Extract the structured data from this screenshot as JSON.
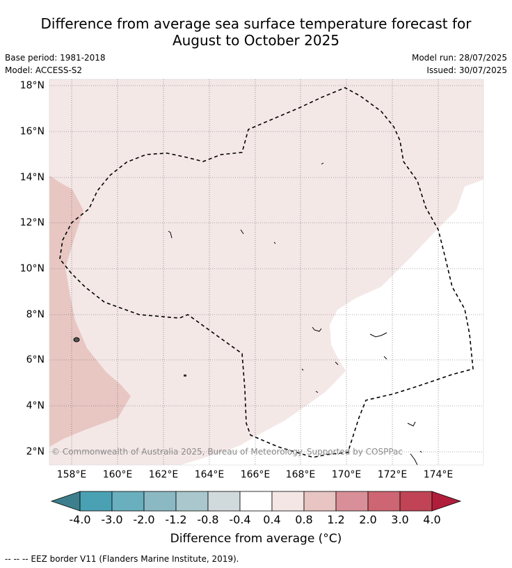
{
  "title": {
    "line1": "Difference from average sea surface temperature forecast for",
    "line2": "August to October 2025"
  },
  "meta": {
    "base_period": "Base period: 1981-2018",
    "model": "Model: ACCESS-S2",
    "model_run": "Model run: 28/07/2025",
    "issued": "Issued: 30/07/2025"
  },
  "map": {
    "lat_labels": [
      "18°N",
      "16°N",
      "14°N",
      "12°N",
      "10°N",
      "8°N",
      "6°N",
      "4°N",
      "2°N"
    ],
    "lon_labels": [
      "158°E",
      "160°E",
      "162°E",
      "164°E",
      "166°E",
      "168°E",
      "170°E",
      "172°E",
      "174°E"
    ],
    "copyright": "© Commonwealth of Australia 2025, Bureau of Meteorology. Supported by COSPPac"
  },
  "colorbar": {
    "ticks": [
      "-4.0",
      "-3.0",
      "-2.0",
      "-1.2",
      "-0.8",
      "-0.4",
      "0.4",
      "0.8",
      "1.2",
      "2.0",
      "3.0",
      "4.0"
    ],
    "colors": [
      "#3d7f8c",
      "#4aa1b3",
      "#6aafbe",
      "#8bb9c3",
      "#a9c7cc",
      "#d0d9db",
      "#ffffff",
      "#f4e6e5",
      "#e8c5c2",
      "#d98f98",
      "#cd6572",
      "#c04455",
      "#b01e3c"
    ],
    "title": "Difference from average (°C)"
  },
  "footer": {
    "legend": "--  --  -- EEZ border V11 (Flanders Marine Institute, 2019)."
  }
}
